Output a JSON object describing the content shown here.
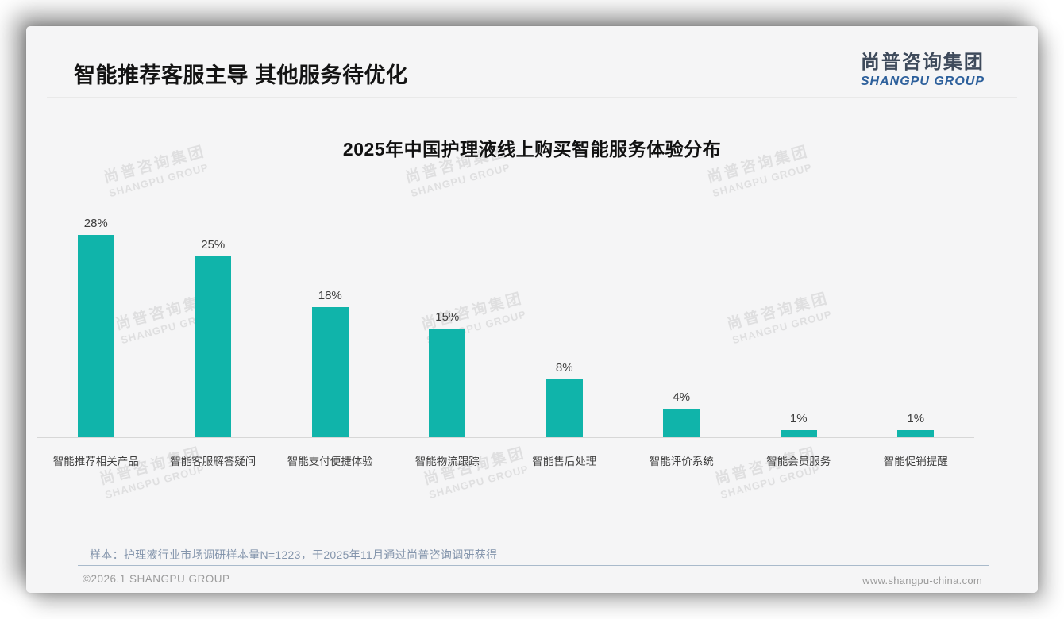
{
  "page": {
    "heading": "智能推荐客服主导 其他服务待优化",
    "logo": {
      "cn": "尚普咨询集团",
      "en": "SHANGPU GROUP"
    },
    "watermark": {
      "cn": "尚普咨询集团",
      "en": "SHANGPU GROUP"
    },
    "footer": {
      "note": "样本：护理液行业市场调研样本量N=1223，于2025年11月通过尚普咨询调研获得",
      "copyright": "©2026.1 SHANGPU GROUP",
      "website": "www.shangpu-china.com"
    },
    "colors": {
      "bar": "#10b4aa",
      "logo_cn": "#3e4a5b",
      "logo_en": "#2c5f9b",
      "note_text": "#8495ac",
      "card_bg": "#f5f5f6"
    }
  },
  "chart_data": {
    "type": "bar",
    "title": "2025年中国护理液线上购买智能服务体验分布",
    "categories": [
      "智能推荐相关产品",
      "智能客服解答疑问",
      "智能支付便捷体验",
      "智能物流跟踪",
      "智能售后处理",
      "智能评价系统",
      "智能会员服务",
      "智能促销提醒"
    ],
    "values": [
      28,
      25,
      18,
      15,
      8,
      4,
      1,
      1
    ],
    "unit": "%",
    "data_labels": [
      "28%",
      "25%",
      "18%",
      "15%",
      "8%",
      "4%",
      "1%",
      "1%"
    ],
    "xlabel": "",
    "ylabel": "",
    "ylim": [
      0,
      30
    ],
    "grid": false,
    "legend": "none",
    "bar_color": "#10b4aa"
  }
}
